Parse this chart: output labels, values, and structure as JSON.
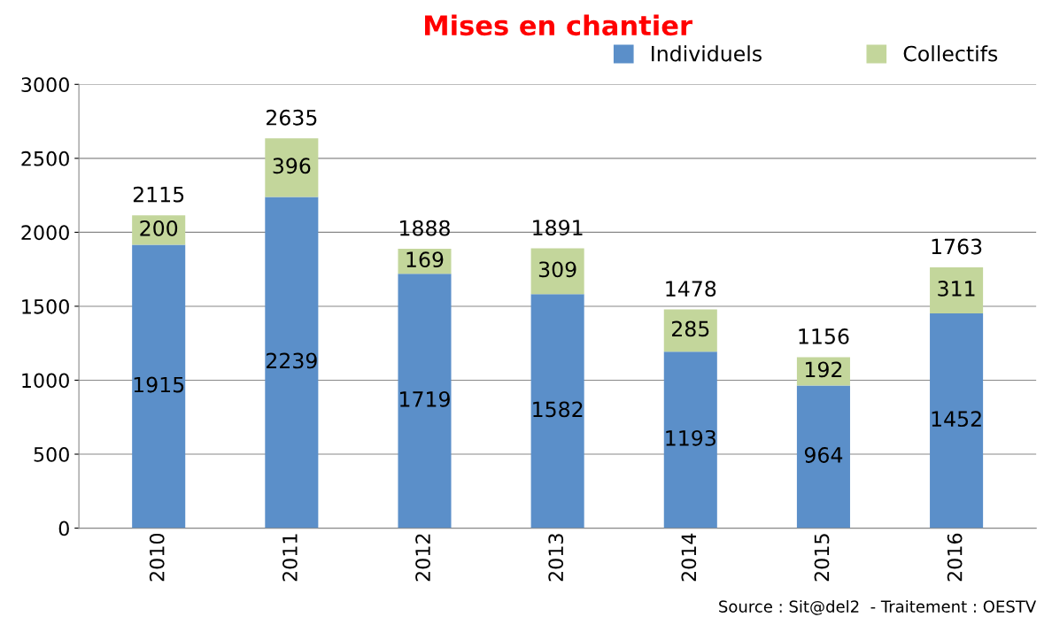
{
  "chart_data": {
    "type": "bar",
    "title": "Mises en chantier",
    "stacked": true,
    "categories": [
      "2010",
      "2011",
      "2012",
      "2013",
      "2014",
      "2015",
      "2016"
    ],
    "series": [
      {
        "name": "Individuels",
        "color": "#5b8fc9",
        "values": [
          1915,
          2239,
          1719,
          1582,
          1193,
          964,
          1452
        ]
      },
      {
        "name": "Collectifs",
        "color": "#c3d69b",
        "values": [
          200,
          396,
          169,
          309,
          285,
          192,
          311
        ]
      }
    ],
    "totals": [
      "2115",
      "2635",
      "1888",
      "1891",
      "1478",
      "1156",
      "1763"
    ],
    "data_labels": true,
    "ylim": [
      0,
      3000
    ],
    "yticks": [
      0,
      500,
      1000,
      1500,
      2000,
      2500,
      3000
    ],
    "grid": "y",
    "legend": "top right",
    "annotations": [
      "Source : Sit@del2  - Traitement : OESTV"
    ]
  }
}
